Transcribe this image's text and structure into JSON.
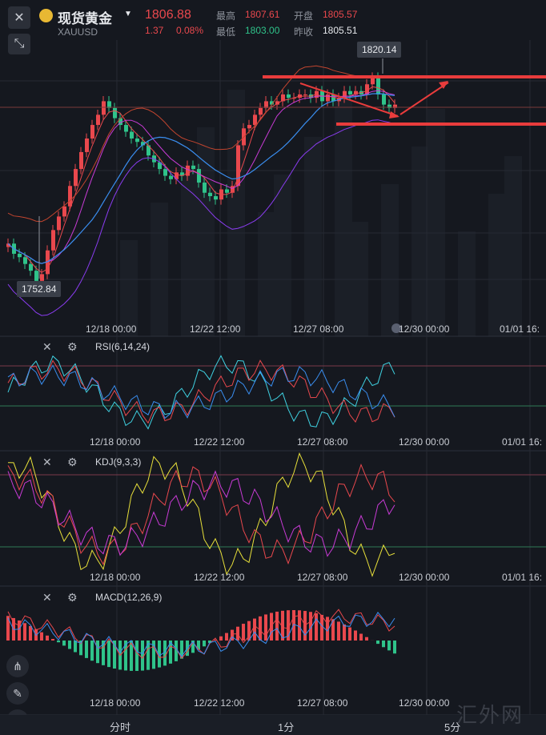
{
  "header": {
    "close_icon": "close-icon",
    "title": "现货黄金",
    "symbol": "XAUUSD",
    "price": "1806.88",
    "change": "1.37",
    "change_pct": "0.08%",
    "high_label": "最高",
    "high_value": "1807.61",
    "open_label": "开盘",
    "open_value": "1805.57",
    "low_label": "最低",
    "low_value": "1803.00",
    "prev_close_label": "昨收",
    "prev_close_value": "1805.51",
    "colors": {
      "up": "#e9484d",
      "down": "#2fc38a",
      "bg": "#15181f"
    }
  },
  "main_chart": {
    "high_tag": "1820.14",
    "low_tag": "1752.84",
    "time_labels": [
      "12/18 00:00",
      "12/22 12:00",
      "12/27 08:00",
      "12/30 00:00",
      "01/01 16:"
    ]
  },
  "rsi": {
    "title": "RSI(6,14,24)",
    "time_labels": [
      "12/18 00:00",
      "12/22 12:00",
      "12/27 08:00",
      "12/30 00:00",
      "01/01 16:"
    ]
  },
  "kdj": {
    "title": "KDJ(9,3,3)",
    "time_labels": [
      "12/18 00:00",
      "12/22 12:00",
      "12/27 08:00",
      "12/30 00:00",
      "01/01 16:"
    ]
  },
  "macd": {
    "title": "MACD(12,26,9)",
    "time_labels": [
      "12/18 00:00",
      "12/22 12:00",
      "12/27 08:00",
      "12/30 00:00"
    ]
  },
  "timeframes": {
    "t1": "分时",
    "t2": "1分",
    "t3": "5分"
  },
  "watermark": "汇外网",
  "chart_data": {
    "type": "candlestick",
    "price_range": [
      1752.84,
      1820.14
    ],
    "closes": [
      1766,
      1763,
      1762,
      1760,
      1758,
      1755,
      1757,
      1764,
      1770,
      1774,
      1777,
      1783,
      1788,
      1793,
      1797,
      1801,
      1804,
      1808,
      1806,
      1803,
      1801,
      1799,
      1797,
      1796,
      1795,
      1792,
      1790,
      1788,
      1786,
      1785,
      1787,
      1786,
      1789,
      1788,
      1784,
      1781,
      1780,
      1779,
      1782,
      1781,
      1783,
      1795,
      1800,
      1801,
      1804,
      1806,
      1808,
      1807,
      1808,
      1810,
      1809,
      1809,
      1810,
      1810,
      1809,
      1811,
      1808,
      1810,
      1808,
      1809,
      1811,
      1810,
      1811,
      1810,
      1813,
      1815,
      1810,
      1807,
      1806,
      1807
    ],
    "colors": {
      "up": "#e9484d",
      "down": "#2fc38a",
      "ma1": "#e9484d",
      "ma2": "#c93bd6",
      "ma3": "#3a8ef0",
      "boll": "#8a3cf0"
    }
  }
}
